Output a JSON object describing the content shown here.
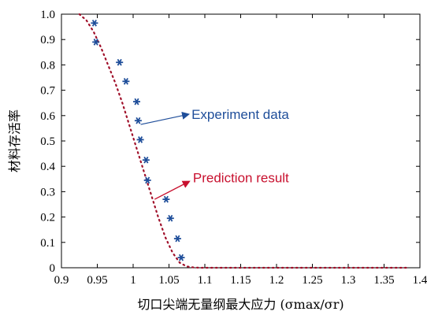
{
  "chart_data": {
    "type": "scatter",
    "title": "",
    "xlabel": "切口尖端无量纲最大应力 (σmax/σr)",
    "ylabel": "材料存活率",
    "xlim": [
      0.9,
      1.4
    ],
    "ylim": [
      0,
      1.0
    ],
    "xticks": [
      "0.9",
      "0.95",
      "1",
      "1.05",
      "1.1",
      "1.15",
      "1.2",
      "1.25",
      "1.3",
      "1.35",
      "1.4"
    ],
    "yticks": [
      "0",
      "0.1",
      "0.2",
      "0.3",
      "0.4",
      "0.5",
      "0.6",
      "0.7",
      "0.8",
      "0.9",
      "1.0"
    ],
    "grid": false,
    "colors": {
      "experiment": "#1f4e9a",
      "prediction": "#a0102a",
      "annotation_red": "#c8102e"
    },
    "series": [
      {
        "name": "Experiment data",
        "marker": "asterisk",
        "x": [
          0.946,
          0.948,
          0.981,
          0.99,
          1.005,
          1.007,
          1.01,
          1.018,
          1.02,
          1.046,
          1.052,
          1.062,
          1.067
        ],
        "y": [
          0.965,
          0.89,
          0.81,
          0.735,
          0.655,
          0.58,
          0.505,
          0.425,
          0.345,
          0.27,
          0.195,
          0.115,
          0.04
        ]
      },
      {
        "name": "Prediction result",
        "style": "dotted",
        "x": [
          0.925,
          0.935,
          0.945,
          0.955,
          0.965,
          0.975,
          0.985,
          0.995,
          1.005,
          1.015,
          1.025,
          1.035,
          1.045,
          1.055,
          1.065,
          1.075,
          1.085,
          1.095,
          1.11,
          1.15,
          1.2,
          1.25,
          1.3,
          1.35,
          1.385
        ],
        "y": [
          1.0,
          0.975,
          0.93,
          0.87,
          0.8,
          0.73,
          0.65,
          0.56,
          0.47,
          0.38,
          0.29,
          0.2,
          0.12,
          0.06,
          0.02,
          0.005,
          0.001,
          0.0,
          0.0,
          0.0,
          0.0,
          0.0,
          0.0,
          0.0,
          0.0
        ]
      }
    ],
    "annotations": [
      {
        "text": "Experiment data",
        "color": "blue",
        "arrow_to": [
          1.005,
          0.565
        ],
        "text_at": [
          1.088,
          0.605
        ]
      },
      {
        "text": "Prediction result",
        "color": "red",
        "arrow_to": [
          1.08,
          0.34
        ],
        "text_at": [
          1.09,
          0.355
        ]
      }
    ]
  }
}
